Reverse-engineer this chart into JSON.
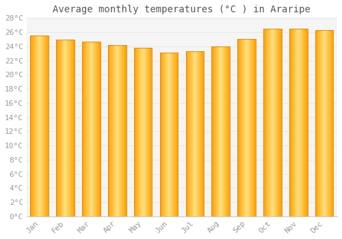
{
  "title": "Average monthly temperatures (°C ) in Araripe",
  "months": [
    "Jan",
    "Feb",
    "Mar",
    "Apr",
    "May",
    "Jun",
    "Jul",
    "Aug",
    "Sep",
    "Oct",
    "Nov",
    "Dec"
  ],
  "values": [
    25.5,
    24.9,
    24.7,
    24.2,
    23.8,
    23.1,
    23.3,
    24.0,
    25.0,
    26.5,
    26.5,
    26.3
  ],
  "bar_color_center": "#FFD966",
  "bar_color_edge": "#FFA500",
  "bar_color_main": "#FFC020",
  "ylim": [
    0,
    28
  ],
  "yticks": [
    0,
    2,
    4,
    6,
    8,
    10,
    12,
    14,
    16,
    18,
    20,
    22,
    24,
    26,
    28
  ],
  "ytick_labels": [
    "0°C",
    "2°C",
    "4°C",
    "6°C",
    "8°C",
    "10°C",
    "12°C",
    "14°C",
    "16°C",
    "18°C",
    "20°C",
    "22°C",
    "24°C",
    "26°C",
    "28°C"
  ],
  "background_color": "#ffffff",
  "plot_bg_color": "#f5f5f5",
  "grid_color": "#e8e8e8",
  "title_fontsize": 10,
  "tick_fontsize": 8,
  "bar_width": 0.7
}
